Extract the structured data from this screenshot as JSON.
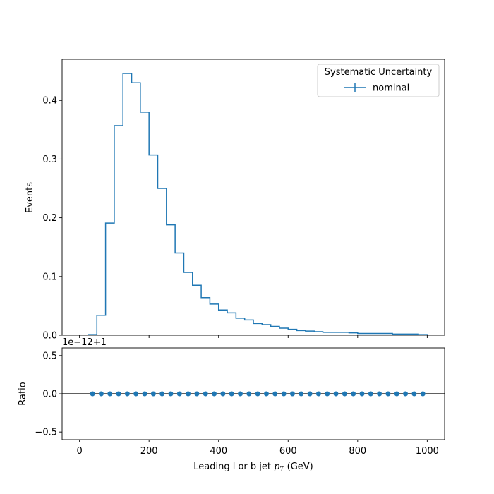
{
  "chart_data": [
    {
      "type": "histogram-step",
      "ylabel": "Events",
      "xlim": [
        -50,
        1050
      ],
      "ylim": [
        0,
        0.47
      ],
      "yticks": [
        0.0,
        0.1,
        0.2,
        0.3,
        0.4
      ],
      "ytick_labels": [
        "0.0",
        "0.1",
        "0.2",
        "0.3",
        "0.4"
      ],
      "bin_edges": [
        25,
        50,
        75,
        100,
        125,
        150,
        175,
        200,
        225,
        250,
        275,
        300,
        325,
        350,
        375,
        400,
        425,
        450,
        475,
        500,
        525,
        550,
        575,
        600,
        625,
        650,
        675,
        700,
        725,
        750,
        775,
        800,
        825,
        850,
        875,
        900,
        925,
        950,
        975,
        1000
      ],
      "series": [
        {
          "name": "nominal",
          "color": "#1f77b4",
          "values": [
            0.001,
            0.034,
            0.191,
            0.357,
            0.446,
            0.43,
            0.38,
            0.307,
            0.25,
            0.188,
            0.14,
            0.107,
            0.085,
            0.064,
            0.053,
            0.043,
            0.038,
            0.029,
            0.026,
            0.02,
            0.018,
            0.015,
            0.012,
            0.01,
            0.008,
            0.007,
            0.006,
            0.005,
            0.005,
            0.005,
            0.004,
            0.003,
            0.003,
            0.003,
            0.003,
            0.002,
            0.002,
            0.002,
            0.001
          ]
        }
      ],
      "legend": {
        "title": "Systematic Uncertainty",
        "placement": "top-right",
        "entries": [
          "nominal"
        ]
      }
    },
    {
      "type": "scatter",
      "xlabel_prefix": "Leading l or b jet ",
      "xlabel_math": "p",
      "xlabel_sub": "T",
      "xlabel_suffix": " (GeV)",
      "ylabel": "Ratio",
      "offset_text": "1e−12+1",
      "xlim": [
        -50,
        1050
      ],
      "ylim": [
        -0.6,
        0.6
      ],
      "xticks": [
        0,
        200,
        400,
        600,
        800,
        1000
      ],
      "xtick_labels": [
        "0",
        "200",
        "400",
        "600",
        "800",
        "1000"
      ],
      "yticks": [
        -0.5,
        0.0,
        0.5
      ],
      "ytick_labels": [
        "−0.5",
        "0.0",
        "0.5"
      ],
      "reference_line": 0.0,
      "series": [
        {
          "name": "nominal",
          "color": "#1f77b4",
          "x": [
            37.5,
            62.5,
            87.5,
            112.5,
            137.5,
            162.5,
            187.5,
            212.5,
            237.5,
            262.5,
            287.5,
            312.5,
            337.5,
            362.5,
            387.5,
            412.5,
            437.5,
            462.5,
            487.5,
            512.5,
            537.5,
            562.5,
            587.5,
            612.5,
            637.5,
            662.5,
            687.5,
            712.5,
            737.5,
            762.5,
            787.5,
            812.5,
            837.5,
            862.5,
            887.5,
            912.5,
            937.5,
            962.5,
            987.5
          ],
          "values": [
            0,
            0,
            0,
            0,
            0,
            0,
            0,
            0,
            0,
            0,
            0,
            0,
            0,
            0,
            0,
            0,
            0,
            0,
            0,
            0,
            0,
            0,
            0,
            0,
            0,
            0,
            0,
            0,
            0,
            0,
            0,
            0,
            0,
            0,
            0,
            0,
            0,
            0,
            0
          ]
        }
      ]
    }
  ]
}
